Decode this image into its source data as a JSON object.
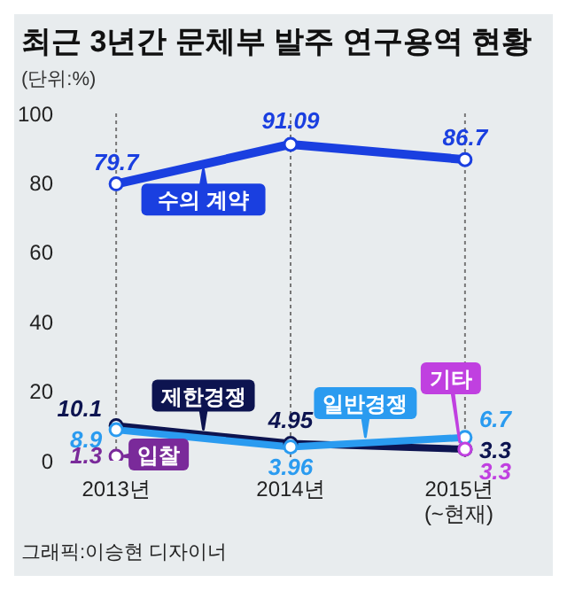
{
  "chart_data": {
    "type": "line",
    "title": "최근 3년간 문체부 발주 연구용역 현황",
    "subtitle": "(단위:%)",
    "categories": [
      "2013년",
      "2014년",
      "2015년\n(~현재)"
    ],
    "series": [
      {
        "name": "수의 계약",
        "color": "#1a3fe0",
        "values": [
          79.7,
          91.09,
          86.7
        ]
      },
      {
        "name": "제한경쟁",
        "color": "#0d1450",
        "values": [
          10.1,
          4.95,
          3.3
        ]
      },
      {
        "name": "일반경쟁",
        "color": "#2a9bf0",
        "values": [
          8.9,
          3.96,
          6.7
        ]
      },
      {
        "name": "입찰",
        "color": "#7a2a9a",
        "values": [
          1.3,
          null,
          null
        ]
      },
      {
        "name": "기타",
        "color": "#c040e0",
        "values": [
          null,
          null,
          3.3
        ]
      }
    ],
    "ylim": [
      0,
      100
    ],
    "yticks": [
      0,
      20,
      40,
      60,
      80,
      100
    ],
    "grid": "x",
    "marker": "circle",
    "line_style": "solid",
    "data_labels": true,
    "annotations": [
      "그래픽:이승현 디자이너"
    ]
  }
}
